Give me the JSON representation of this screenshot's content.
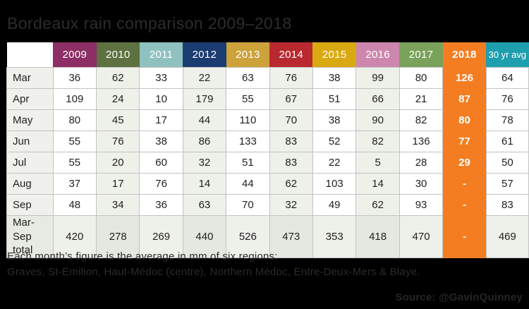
{
  "title": "Bordeaux rain comparison 2009–2018",
  "colors": {
    "page_background": "#000000",
    "grid_line": "#c3c3c3",
    "column_shade": "#eef0ea",
    "label_column": "#f0f1ec",
    "total_row": "#eef0ea",
    "highlight_orange": "#f47d21"
  },
  "table": {
    "corner_label": "",
    "columns": [
      {
        "label": "2009",
        "bg": "#8d2e66",
        "shaded": false
      },
      {
        "label": "2010",
        "bg": "#5d7240",
        "shaded": true
      },
      {
        "label": "2011",
        "bg": "#8ec1bf",
        "shaded": false
      },
      {
        "label": "2012",
        "bg": "#1b3c70",
        "shaded": true
      },
      {
        "label": "2013",
        "bg": "#cda23a",
        "shaded": false
      },
      {
        "label": "2014",
        "bg": "#b9292f",
        "shaded": true
      },
      {
        "label": "2015",
        "bg": "#d9a912",
        "shaded": false
      },
      {
        "label": "2016",
        "bg": "#cd87ae",
        "shaded": true
      },
      {
        "label": "2017",
        "bg": "#7aa25a",
        "shaded": false
      },
      {
        "label": "2018",
        "bg": "#f47d21",
        "shaded": false,
        "bold": true,
        "highlight": true
      },
      {
        "label": "30 yr avg",
        "bg": "#1f9fae",
        "shaded": false,
        "small": true
      }
    ],
    "rows": [
      {
        "label": "Mar",
        "values": [
          36,
          62,
          33,
          22,
          63,
          76,
          38,
          99,
          80,
          126,
          64
        ]
      },
      {
        "label": "Apr",
        "values": [
          109,
          24,
          10,
          179,
          55,
          67,
          51,
          66,
          21,
          87,
          76
        ]
      },
      {
        "label": "May",
        "values": [
          80,
          45,
          17,
          44,
          110,
          70,
          38,
          90,
          82,
          80,
          78
        ]
      },
      {
        "label": "Jun",
        "values": [
          55,
          76,
          38,
          86,
          133,
          83,
          52,
          82,
          136,
          77,
          61
        ]
      },
      {
        "label": "Jul",
        "values": [
          55,
          20,
          60,
          32,
          51,
          83,
          22,
          5,
          28,
          29,
          50
        ]
      },
      {
        "label": "Aug",
        "values": [
          37,
          17,
          76,
          14,
          44,
          62,
          103,
          14,
          30,
          "-",
          57
        ]
      },
      {
        "label": "Sep",
        "values": [
          48,
          34,
          36,
          63,
          70,
          32,
          49,
          62,
          93,
          "-",
          83
        ]
      },
      {
        "label": "Mar-Sep total",
        "values": [
          420,
          278,
          269,
          440,
          526,
          473,
          353,
          418,
          470,
          "-",
          469
        ],
        "total": true
      }
    ]
  },
  "chart_data": {
    "type": "table",
    "title": "Bordeaux rain comparison 2009–2018",
    "unit": "mm",
    "categories": [
      "2009",
      "2010",
      "2011",
      "2012",
      "2013",
      "2014",
      "2015",
      "2016",
      "2017",
      "2018",
      "30 yr avg"
    ],
    "series": [
      {
        "name": "Mar",
        "values": [
          36,
          62,
          33,
          22,
          63,
          76,
          38,
          99,
          80,
          126,
          64
        ]
      },
      {
        "name": "Apr",
        "values": [
          109,
          24,
          10,
          179,
          55,
          67,
          51,
          66,
          21,
          87,
          76
        ]
      },
      {
        "name": "May",
        "values": [
          80,
          45,
          17,
          44,
          110,
          70,
          38,
          90,
          82,
          80,
          78
        ]
      },
      {
        "name": "Jun",
        "values": [
          55,
          76,
          38,
          86,
          133,
          83,
          52,
          82,
          136,
          77,
          61
        ]
      },
      {
        "name": "Jul",
        "values": [
          55,
          20,
          60,
          32,
          51,
          83,
          22,
          5,
          28,
          29,
          50
        ]
      },
      {
        "name": "Aug",
        "values": [
          37,
          17,
          76,
          14,
          44,
          62,
          103,
          14,
          30,
          null,
          57
        ]
      },
      {
        "name": "Sep",
        "values": [
          48,
          34,
          36,
          63,
          70,
          32,
          49,
          62,
          93,
          null,
          83
        ]
      },
      {
        "name": "Mar-Sep total",
        "values": [
          420,
          278,
          269,
          440,
          526,
          473,
          353,
          418,
          470,
          null,
          469
        ]
      }
    ]
  },
  "footnote": {
    "line1": "Each month’s figure is the average in mm of six regions:",
    "line2": "Graves, St-Emilion, Haut-Médoc (centre), Northern Médoc, Entre-Deux-Mers & Blaye."
  },
  "source": "Source: @GavinQuinney"
}
